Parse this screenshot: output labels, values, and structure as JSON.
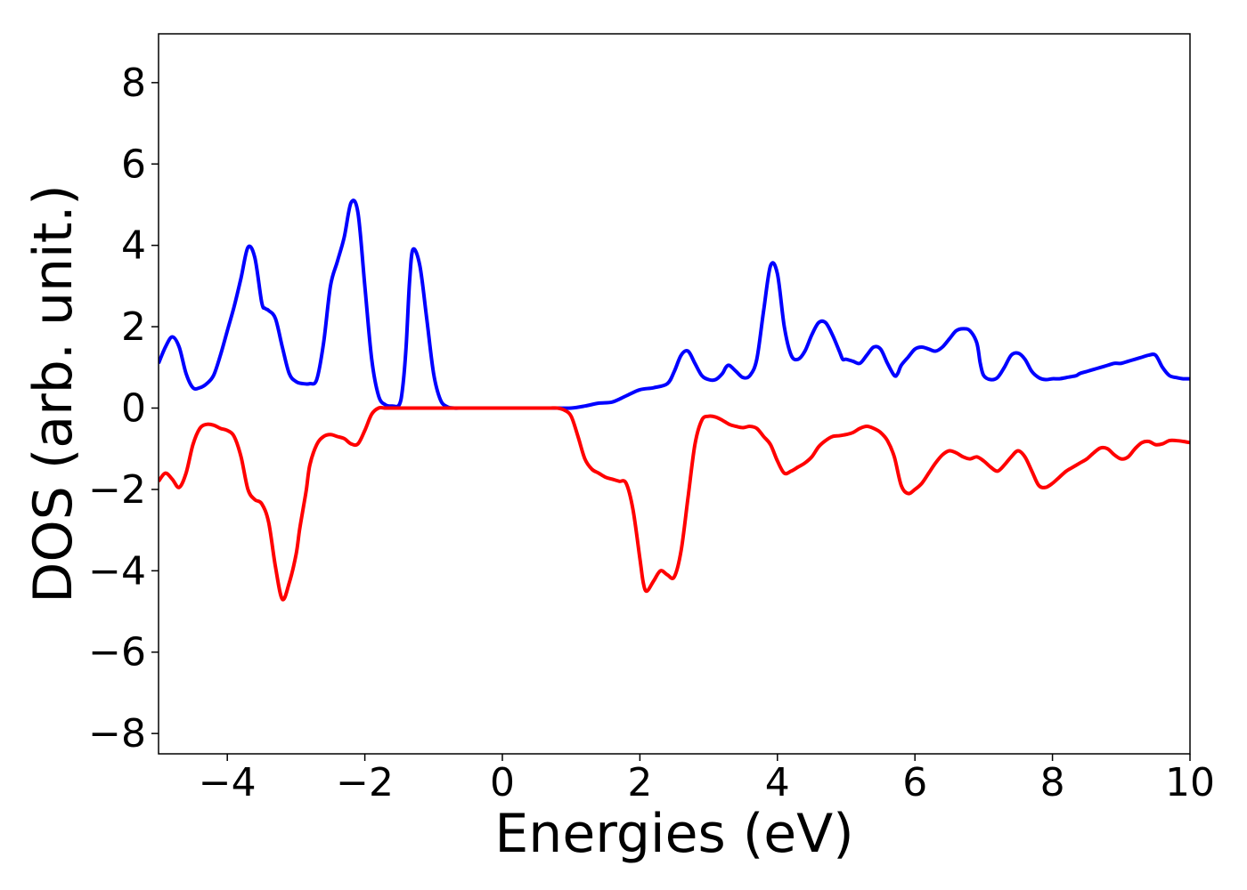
{
  "chart_data": {
    "type": "line",
    "title": "",
    "xlabel": "Energies (eV)",
    "ylabel": "DOS (arb. unit.)",
    "xlim": [
      -5,
      10
    ],
    "ylim": [
      -8.5,
      9.2
    ],
    "x_ticks": [
      -4,
      -2,
      0,
      2,
      4,
      6,
      8,
      10
    ],
    "x_tick_labels": [
      "−4",
      "−2",
      "0",
      "2",
      "4",
      "6",
      "8",
      "10"
    ],
    "y_ticks": [
      -8,
      -6,
      -4,
      -2,
      0,
      2,
      4,
      6,
      8
    ],
    "y_tick_labels": [
      "−8",
      "−6",
      "−4",
      "−2",
      "0",
      "2",
      "4",
      "6",
      "8"
    ],
    "grid": false,
    "legend": "none",
    "series": [
      {
        "color": "#0000ff",
        "x": [
          -5.0,
          -4.9,
          -4.8,
          -4.7,
          -4.6,
          -4.5,
          -4.4,
          -4.3,
          -4.2,
          -4.1,
          -4.0,
          -3.9,
          -3.8,
          -3.7,
          -3.6,
          -3.5,
          -3.45,
          -3.4,
          -3.3,
          -3.2,
          -3.1,
          -3.0,
          -2.9,
          -2.8,
          -2.7,
          -2.6,
          -2.5,
          -2.4,
          -2.3,
          -2.2,
          -2.1,
          -2.0,
          -1.9,
          -1.8,
          -1.7,
          -1.6,
          -1.5,
          -1.45,
          -1.4,
          -1.35,
          -1.3,
          -1.2,
          -1.1,
          -1.0,
          -0.9,
          -0.8,
          -0.7,
          -0.6,
          -0.5,
          -0.4,
          -0.3,
          -0.2,
          -0.1,
          0.0,
          0.1,
          0.2,
          0.3,
          0.4,
          0.5,
          0.6,
          0.8,
          1.0,
          1.2,
          1.4,
          1.6,
          1.8,
          2.0,
          2.2,
          2.4,
          2.5,
          2.6,
          2.7,
          2.8,
          2.9,
          3.0,
          3.1,
          3.2,
          3.25,
          3.3,
          3.4,
          3.5,
          3.6,
          3.7,
          3.8,
          3.9,
          4.0,
          4.1,
          4.2,
          4.3,
          4.4,
          4.5,
          4.6,
          4.7,
          4.8,
          4.9,
          4.95,
          5.0,
          5.1,
          5.2,
          5.3,
          5.4,
          5.5,
          5.6,
          5.7,
          5.75,
          5.8,
          5.9,
          6.0,
          6.1,
          6.2,
          6.3,
          6.4,
          6.5,
          6.6,
          6.7,
          6.8,
          6.9,
          6.95,
          7.0,
          7.1,
          7.2,
          7.3,
          7.4,
          7.5,
          7.6,
          7.7,
          7.8,
          7.9,
          8.0,
          8.1,
          8.2,
          8.3,
          8.35,
          8.4,
          8.5,
          8.6,
          8.7,
          8.8,
          8.9,
          9.0,
          9.1,
          9.2,
          9.3,
          9.4,
          9.5,
          9.6,
          9.7,
          9.8,
          9.9,
          10.0
        ],
        "y": [
          1.1,
          1.5,
          1.75,
          1.5,
          0.85,
          0.5,
          0.5,
          0.6,
          0.8,
          1.3,
          1.9,
          2.5,
          3.2,
          3.95,
          3.7,
          2.6,
          2.45,
          2.4,
          2.2,
          1.5,
          0.85,
          0.65,
          0.6,
          0.6,
          0.7,
          1.6,
          3.0,
          3.6,
          4.2,
          5.05,
          4.8,
          3.0,
          1.2,
          0.3,
          0.08,
          0.05,
          0.08,
          0.5,
          1.5,
          3.1,
          3.9,
          3.5,
          2.2,
          0.85,
          0.2,
          0.03,
          0.0,
          0.0,
          0.0,
          0.0,
          0.0,
          0.0,
          0.0,
          0.0,
          0.0,
          0.0,
          0.0,
          0.0,
          0.0,
          0.0,
          0.0,
          0.0,
          0.05,
          0.12,
          0.15,
          0.3,
          0.45,
          0.5,
          0.6,
          0.9,
          1.3,
          1.4,
          1.1,
          0.8,
          0.7,
          0.7,
          0.85,
          1.0,
          1.05,
          0.9,
          0.75,
          0.8,
          1.2,
          2.4,
          3.5,
          3.3,
          2.0,
          1.3,
          1.2,
          1.4,
          1.8,
          2.1,
          2.1,
          1.8,
          1.4,
          1.2,
          1.2,
          1.15,
          1.1,
          1.3,
          1.5,
          1.45,
          1.1,
          0.8,
          0.85,
          1.05,
          1.25,
          1.45,
          1.5,
          1.45,
          1.4,
          1.5,
          1.7,
          1.9,
          1.95,
          1.9,
          1.6,
          1.1,
          0.8,
          0.7,
          0.75,
          1.0,
          1.3,
          1.35,
          1.2,
          0.9,
          0.75,
          0.7,
          0.72,
          0.72,
          0.75,
          0.78,
          0.8,
          0.85,
          0.9,
          0.95,
          1.0,
          1.05,
          1.1,
          1.1,
          1.15,
          1.2,
          1.25,
          1.3,
          1.3,
          1.0,
          0.8,
          0.75,
          0.72,
          0.72
        ],
        "name": ""
      },
      {
        "color": "#ff0000",
        "x": [
          -5.0,
          -4.9,
          -4.8,
          -4.7,
          -4.6,
          -4.5,
          -4.4,
          -4.3,
          -4.2,
          -4.1,
          -4.0,
          -3.9,
          -3.8,
          -3.7,
          -3.6,
          -3.5,
          -3.4,
          -3.3,
          -3.2,
          -3.1,
          -3.0,
          -2.95,
          -2.9,
          -2.85,
          -2.8,
          -2.7,
          -2.6,
          -2.5,
          -2.4,
          -2.3,
          -2.2,
          -2.1,
          -2.0,
          -1.9,
          -1.8,
          -1.7,
          -1.6,
          -1.5,
          -1.4,
          -1.3,
          -1.2,
          -1.1,
          -1.0,
          -0.8,
          -0.6,
          -0.4,
          -0.2,
          0.0,
          0.2,
          0.4,
          0.6,
          0.7,
          0.8,
          0.9,
          1.0,
          1.1,
          1.2,
          1.3,
          1.4,
          1.5,
          1.6,
          1.7,
          1.8,
          1.9,
          2.0,
          2.05,
          2.1,
          2.2,
          2.3,
          2.4,
          2.5,
          2.6,
          2.7,
          2.8,
          2.9,
          3.0,
          3.1,
          3.2,
          3.3,
          3.4,
          3.5,
          3.6,
          3.7,
          3.8,
          3.9,
          4.0,
          4.1,
          4.2,
          4.3,
          4.4,
          4.5,
          4.6,
          4.7,
          4.8,
          4.9,
          5.0,
          5.1,
          5.2,
          5.3,
          5.4,
          5.5,
          5.6,
          5.7,
          5.8,
          5.9,
          6.0,
          6.1,
          6.2,
          6.3,
          6.4,
          6.5,
          6.6,
          6.7,
          6.8,
          6.9,
          7.0,
          7.1,
          7.2,
          7.3,
          7.4,
          7.5,
          7.6,
          7.7,
          7.8,
          7.9,
          8.0,
          8.1,
          8.2,
          8.3,
          8.4,
          8.5,
          8.6,
          8.7,
          8.8,
          8.9,
          9.0,
          9.1,
          9.2,
          9.3,
          9.4,
          9.5,
          9.6,
          9.7,
          9.8,
          9.9,
          10.0
        ],
        "y": [
          -1.8,
          -1.6,
          -1.75,
          -1.95,
          -1.6,
          -0.9,
          -0.5,
          -0.4,
          -0.42,
          -0.5,
          -0.55,
          -0.7,
          -1.2,
          -2.0,
          -2.25,
          -2.35,
          -2.8,
          -3.9,
          -4.7,
          -4.3,
          -3.6,
          -3.0,
          -2.5,
          -2.0,
          -1.4,
          -0.9,
          -0.7,
          -0.65,
          -0.7,
          -0.75,
          -0.88,
          -0.88,
          -0.55,
          -0.15,
          0.0,
          0.0,
          0.0,
          0.0,
          0.0,
          0.0,
          0.0,
          0.0,
          0.0,
          0.0,
          0.0,
          0.0,
          0.0,
          0.0,
          0.0,
          0.0,
          0.0,
          0.0,
          0.0,
          -0.05,
          -0.2,
          -0.7,
          -1.25,
          -1.5,
          -1.6,
          -1.7,
          -1.75,
          -1.8,
          -1.85,
          -2.5,
          -3.7,
          -4.3,
          -4.5,
          -4.25,
          -4.0,
          -4.1,
          -4.15,
          -3.5,
          -2.2,
          -0.9,
          -0.3,
          -0.2,
          -0.22,
          -0.3,
          -0.4,
          -0.45,
          -0.48,
          -0.45,
          -0.5,
          -0.7,
          -0.9,
          -1.3,
          -1.6,
          -1.55,
          -1.45,
          -1.35,
          -1.2,
          -0.95,
          -0.8,
          -0.7,
          -0.68,
          -0.65,
          -0.6,
          -0.5,
          -0.45,
          -0.5,
          -0.6,
          -0.8,
          -1.2,
          -1.9,
          -2.1,
          -2.0,
          -1.85,
          -1.6,
          -1.35,
          -1.15,
          -1.05,
          -1.1,
          -1.2,
          -1.25,
          -1.2,
          -1.3,
          -1.45,
          -1.55,
          -1.4,
          -1.2,
          -1.05,
          -1.2,
          -1.55,
          -1.9,
          -1.95,
          -1.85,
          -1.7,
          -1.55,
          -1.45,
          -1.35,
          -1.25,
          -1.1,
          -0.98,
          -1.0,
          -1.15,
          -1.25,
          -1.2,
          -1.0,
          -0.85,
          -0.82,
          -0.9,
          -0.88,
          -0.8,
          -0.8,
          -0.82,
          -0.85
        ],
        "name": ""
      }
    ]
  }
}
